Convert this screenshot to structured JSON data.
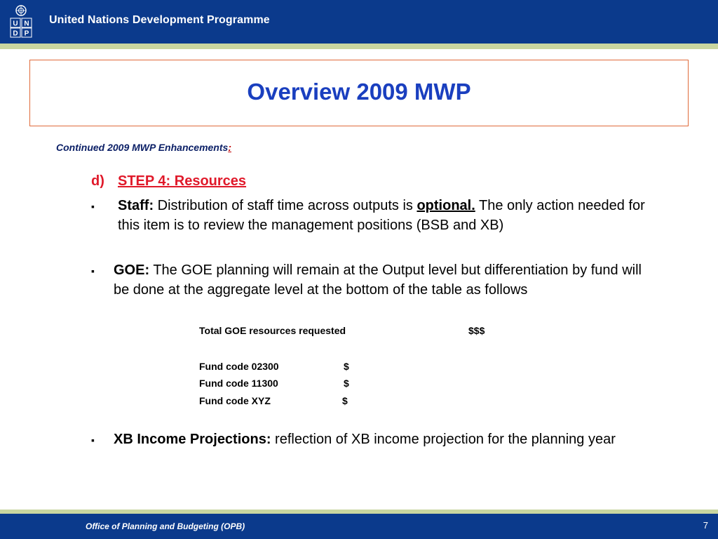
{
  "header": {
    "org_name": "United Nations Development Programme",
    "logo_letters": [
      "U",
      "N",
      "D",
      "P"
    ]
  },
  "slide": {
    "title": "Overview 2009 MWP",
    "subheading": "Continued 2009 MWP Enhancements",
    "subheading_colon": ":",
    "step_marker": "d)",
    "step_label": "STEP 4: Resources",
    "staff": {
      "bullet": "▪",
      "label": "Staff:",
      "text_before": " Distribution of staff time across outputs is ",
      "emphasis": "optional.",
      "text_after": " The only action needed  for this item is to review the management positions (BSB and XB)"
    },
    "goe": {
      "bullet": "▪",
      "label": "GOE:",
      "text": " The GOE planning will remain at the Output level but differentiation by fund will be done at the aggregate level at the bottom of the table as follows"
    },
    "goe_table": {
      "total_label": "Total GOE resources requested",
      "total_amount": "$$$",
      "rows": [
        {
          "label": "Fund code 02300",
          "amount": "$"
        },
        {
          "label": "Fund code 11300",
          "amount": "$"
        },
        {
          "label": "Fund code XYZ",
          "amount": "$"
        }
      ]
    },
    "xb": {
      "bullet": "▪",
      "label": "XB Income Projections:",
      "text": " reflection of XB income projection for the planning year"
    }
  },
  "footer": {
    "text": "Office of Planning and Budgeting (OPB)",
    "page_number": "7"
  },
  "colors": {
    "header_blue": "#0b3a8c",
    "stripe_green": "#c9d6a0",
    "title_blue": "#1a3fbf",
    "step_red": "#e0192a",
    "box_border": "#e06a3a"
  }
}
